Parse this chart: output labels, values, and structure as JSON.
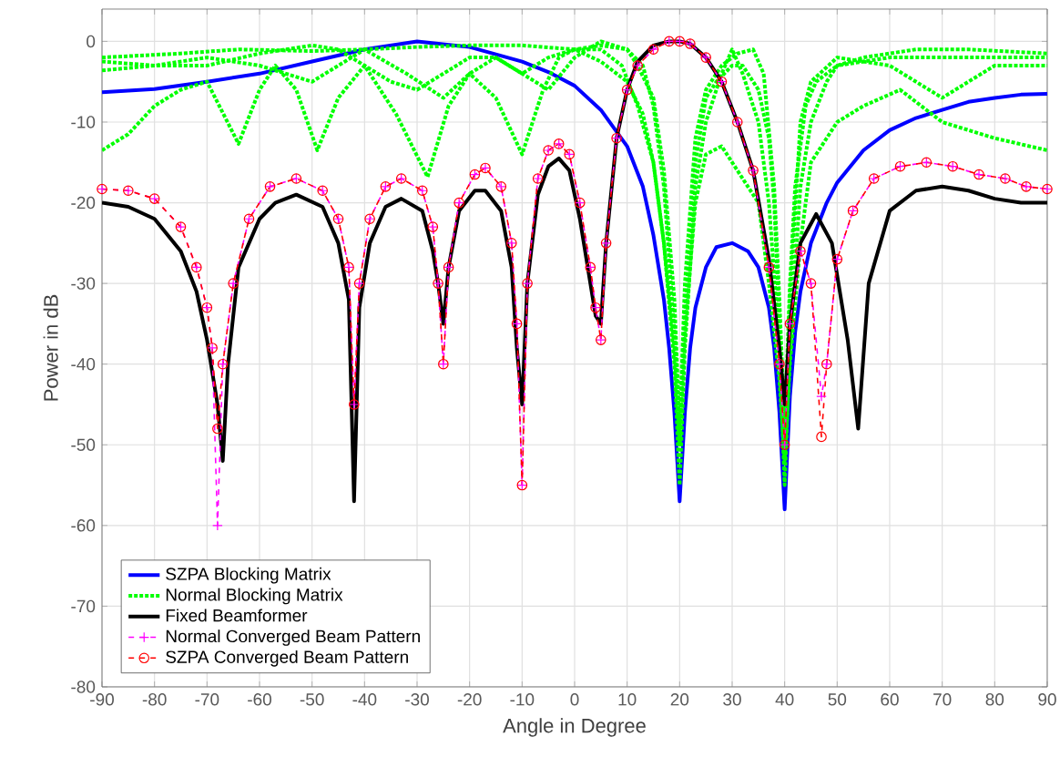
{
  "chart_data": {
    "type": "line",
    "xlabel": "Angle in Degree",
    "ylabel": "Power in dB",
    "xlim": [
      -90,
      90
    ],
    "ylim": [
      -80,
      4
    ],
    "xticks": [
      -90,
      -80,
      -70,
      -60,
      -50,
      -40,
      -30,
      -20,
      -10,
      0,
      10,
      20,
      30,
      40,
      50,
      60,
      70,
      80,
      90
    ],
    "yticks": [
      -80,
      -70,
      -60,
      -50,
      -40,
      -30,
      -20,
      -10,
      0
    ],
    "grid": true,
    "legend": "bottom left",
    "series": [
      {
        "name": "SZPA Blocking Matrix",
        "color": "#0000ff",
        "line_style": "solid",
        "marker": "none",
        "x": [
          -90,
          -80,
          -70,
          -60,
          -50,
          -40,
          -30,
          -20,
          -10,
          -5,
          0,
          5,
          10,
          13,
          15,
          17,
          18,
          19,
          20,
          21,
          22,
          23,
          25,
          27,
          30,
          33,
          35,
          37,
          38,
          39,
          40,
          41,
          42,
          43,
          45,
          48,
          50,
          55,
          60,
          65,
          70,
          75,
          80,
          85,
          90
        ],
        "values": [
          -6.3,
          -5.9,
          -5,
          -4,
          -2.5,
          -1,
          0,
          -0.7,
          -2.5,
          -3.8,
          -5.5,
          -8.5,
          -13,
          -18,
          -24,
          -32,
          -38,
          -46,
          -57,
          -46,
          -38,
          -33,
          -28,
          -25.5,
          -25,
          -26,
          -28,
          -33,
          -38,
          -46,
          -58,
          -44,
          -36,
          -31,
          -25,
          -20,
          -17.5,
          -13.5,
          -11,
          -9.5,
          -8.5,
          -7.5,
          -7,
          -6.6,
          -6.5
        ]
      },
      {
        "name": "Normal Blocking Matrix",
        "color": "#00ff00",
        "line_style": "dotted",
        "marker": "none",
        "x": [
          -90,
          -75,
          -64,
          -50,
          -40,
          -30,
          -20,
          -10,
          0,
          5,
          10,
          13,
          15,
          17,
          19,
          20,
          21,
          23,
          25,
          28,
          30,
          32,
          35,
          37,
          39,
          40,
          41,
          43,
          45,
          48,
          50,
          60,
          70,
          80,
          90
        ],
        "values": [
          -2,
          -1.5,
          -1,
          -1.2,
          -1,
          -0.7,
          -0.5,
          -0.5,
          -1,
          -2.5,
          -5,
          -9,
          -15,
          -25,
          -40,
          -55,
          -38,
          -18,
          -10,
          -4,
          -1,
          -4,
          -10,
          -20,
          -38,
          -55,
          -38,
          -18,
          -10,
          -5,
          -3,
          -2,
          -2,
          -2,
          -2
        ]
      },
      {
        "color": "#00ff00",
        "line_style": "dotted",
        "marker": "none",
        "x": [
          -90,
          -85,
          -80,
          -75,
          -70,
          -64,
          -60,
          -57,
          -53,
          -49,
          -45,
          -40,
          -34,
          -28,
          -24,
          -20,
          -15,
          -10,
          -6,
          -3,
          0,
          5,
          9,
          12,
          15,
          17,
          19,
          20,
          21,
          23,
          25,
          28,
          31,
          35,
          37,
          39,
          40,
          41,
          43,
          45,
          50,
          55,
          62,
          70,
          80,
          90
        ],
        "values": [
          -13.5,
          -11.5,
          -8,
          -6,
          -5,
          -12.7,
          -6,
          -3,
          -6,
          -13.5,
          -7,
          -3,
          -9,
          -16.8,
          -8,
          -4,
          -7,
          -14,
          -6,
          -2,
          -1,
          -1,
          -3,
          -8,
          -15,
          -25,
          -38,
          -50,
          -36,
          -20,
          -14,
          -13,
          -16,
          -20,
          -30,
          -42,
          -52,
          -40,
          -25,
          -15,
          -10,
          -8,
          -6,
          -10,
          -12,
          -13.5
        ]
      },
      {
        "color": "#00ff00",
        "line_style": "dotted",
        "marker": "none",
        "x": [
          -90,
          -80,
          -70,
          -60,
          -50,
          -45,
          -40,
          -35,
          -30,
          -25,
          -20,
          -15,
          -10,
          -5,
          0,
          5,
          10,
          13,
          15,
          17,
          19,
          20,
          21,
          23,
          25,
          27,
          30,
          32,
          35,
          37,
          38,
          39,
          40,
          41,
          43,
          45,
          50,
          55,
          60,
          65,
          70,
          75,
          80,
          85,
          90
        ],
        "values": [
          -2.5,
          -3,
          -3,
          -1.5,
          -0.5,
          -1,
          -3,
          -5,
          -6,
          -4,
          -2,
          -2,
          -4,
          -2,
          -1,
          -0.5,
          -1,
          -3,
          -8,
          -18,
          -36,
          -50,
          -34,
          -15,
          -7,
          -5,
          -3,
          -3,
          -6,
          -12,
          -20,
          -35,
          -50,
          -32,
          -10,
          -5,
          -2,
          -2.5,
          -3,
          -5,
          -7,
          -5,
          -3,
          -3,
          -3
        ]
      },
      {
        "color": "#00ff00",
        "line_style": "dotted",
        "marker": "none",
        "x": [
          -90,
          -80,
          -70,
          -60,
          -50,
          -45,
          -40,
          -32,
          -25,
          -20,
          -15,
          -10,
          -5,
          0,
          5,
          10,
          12,
          15,
          17,
          19,
          20,
          21,
          23,
          25,
          28,
          31,
          34,
          36,
          38,
          39,
          40,
          41,
          42,
          44,
          46,
          50,
          55,
          65,
          75,
          90
        ],
        "values": [
          -3.6,
          -3,
          -2,
          -3,
          -5,
          -3,
          -1,
          -4,
          -7,
          -4,
          -2,
          -4,
          -6,
          -2,
          0,
          -1,
          -3,
          -7,
          -16,
          -32,
          -48,
          -30,
          -12,
          -6,
          -3,
          -1.5,
          -1,
          -4,
          -18,
          -32,
          -48,
          -30,
          -18,
          -8,
          -5,
          -3,
          -2,
          -1,
          -1,
          -1.5
        ]
      },
      {
        "name": "Fixed Beamformer",
        "color": "#000000",
        "line_style": "solid",
        "marker": "none",
        "x": [
          -90,
          -85,
          -80,
          -75,
          -72,
          -70,
          -68,
          -67,
          -66,
          -64,
          -60,
          -57,
          -53,
          -48,
          -45,
          -43,
          -42,
          -41,
          -39,
          -36,
          -33,
          -29,
          -27,
          -26,
          -25,
          -24,
          -22,
          -19,
          -17,
          -14,
          -12,
          -11,
          -10,
          -9,
          -7,
          -5,
          -3,
          -1,
          1,
          3,
          4,
          5,
          6,
          8,
          10,
          12,
          15,
          18,
          20,
          22,
          25,
          28,
          31,
          34,
          37,
          39,
          40,
          41,
          43,
          46,
          49,
          52,
          54,
          56,
          60,
          65,
          70,
          75,
          80,
          85,
          90
        ],
        "values": [
          -20,
          -20.5,
          -22,
          -26,
          -31,
          -37,
          -45,
          -52,
          -40,
          -28,
          -22,
          -20,
          -19,
          -20.5,
          -25,
          -32,
          -57,
          -33,
          -25,
          -20.5,
          -19.5,
          -21,
          -26,
          -30,
          -35,
          -28,
          -21,
          -18.5,
          -18.5,
          -21,
          -28,
          -38,
          -45,
          -30,
          -19,
          -15.5,
          -14.5,
          -16,
          -22,
          -30,
          -34,
          -35,
          -25,
          -12,
          -6,
          -2.5,
          -0.5,
          0,
          0,
          -0.3,
          -2,
          -5,
          -10,
          -16,
          -27,
          -38,
          -45,
          -35,
          -25,
          -21.4,
          -25,
          -37,
          -48,
          -30,
          -21,
          -18.5,
          -18,
          -18.5,
          -19.5,
          -20,
          -20
        ]
      },
      {
        "name": "Normal Converged Beam Pattern",
        "color": "#ff00ff",
        "line_style": "dashed",
        "marker": "cross",
        "x": [
          -90,
          -85,
          -80,
          -75,
          -72,
          -70,
          -69,
          -68,
          -67,
          -65,
          -62,
          -58,
          -53,
          -48,
          -45,
          -43,
          -42,
          -41,
          -39,
          -36,
          -33,
          -29,
          -27,
          -26,
          -25,
          -24,
          -22,
          -19,
          -17,
          -14,
          -12,
          -11,
          -10,
          -9,
          -7,
          -5,
          -3,
          -1,
          1,
          3,
          4,
          5,
          6,
          8,
          10,
          12,
          15,
          18,
          20,
          22,
          25,
          28,
          31,
          34,
          37,
          39,
          40,
          41,
          43,
          45,
          47,
          48,
          50,
          53,
          57,
          62,
          67,
          72,
          77,
          82,
          86,
          90
        ],
        "values": [
          -18.3,
          -18.5,
          -19.5,
          -23,
          -28,
          -33,
          -38,
          -60,
          -40,
          -30,
          -22,
          -18,
          -17,
          -18.5,
          -22,
          -28,
          -45,
          -30,
          -22,
          -18,
          -17,
          -18.5,
          -23,
          -30,
          -40,
          -28,
          -20,
          -16.5,
          -15.7,
          -18,
          -25,
          -35,
          -55,
          -30,
          -17,
          -13.5,
          -12.7,
          -14,
          -20,
          -28,
          -33,
          -37,
          -25,
          -12,
          -6,
          -3,
          -1,
          0,
          0,
          -0.3,
          -2,
          -5,
          -10,
          -16,
          -28,
          -40,
          -50,
          -35,
          -26,
          -30,
          -44,
          -40,
          -27,
          -21,
          -17,
          -15.5,
          -15,
          -15.5,
          -16.5,
          -17,
          -18,
          -18.3
        ]
      },
      {
        "name": "SZPA Converged Beam Pattern",
        "color": "#ff0000",
        "line_style": "dashed",
        "marker": "circle",
        "x": [
          -90,
          -85,
          -80,
          -75,
          -72,
          -70,
          -69,
          -68,
          -67,
          -65,
          -62,
          -58,
          -53,
          -48,
          -45,
          -43,
          -42,
          -41,
          -39,
          -36,
          -33,
          -29,
          -27,
          -26,
          -25,
          -24,
          -22,
          -19,
          -17,
          -14,
          -12,
          -11,
          -10,
          -9,
          -7,
          -5,
          -3,
          -1,
          1,
          3,
          4,
          5,
          6,
          8,
          10,
          12,
          15,
          18,
          20,
          22,
          25,
          28,
          31,
          34,
          37,
          39,
          40,
          41,
          43,
          45,
          47,
          48,
          50,
          53,
          57,
          62,
          67,
          72,
          77,
          82,
          86,
          90
        ],
        "values": [
          -18.3,
          -18.5,
          -19.5,
          -23,
          -28,
          -33,
          -38,
          -48,
          -40,
          -30,
          -22,
          -18,
          -17,
          -18.5,
          -22,
          -28,
          -45,
          -30,
          -22,
          -18,
          -17,
          -18.5,
          -23,
          -30,
          -40,
          -28,
          -20,
          -16.5,
          -15.7,
          -18,
          -25,
          -35,
          -55,
          -30,
          -17,
          -13.5,
          -12.7,
          -14,
          -20,
          -28,
          -33,
          -37,
          -25,
          -12,
          -6,
          -3,
          -1,
          0,
          0,
          -0.3,
          -2,
          -5,
          -10,
          -16,
          -28,
          -40,
          -50,
          -35,
          -26,
          -30,
          -49,
          -40,
          -27,
          -21,
          -17,
          -15.5,
          -15,
          -15.5,
          -16.5,
          -17,
          -18,
          -18.3
        ]
      }
    ]
  }
}
